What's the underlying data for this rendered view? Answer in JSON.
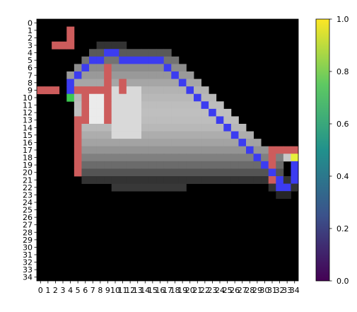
{
  "chart_data": {
    "type": "heatmap",
    "x_ticks": [
      "0",
      "1",
      "2",
      "3",
      "4",
      "5",
      "6",
      "7",
      "8",
      "9",
      "10",
      "11",
      "12",
      "13",
      "14",
      "15",
      "16",
      "17",
      "18",
      "19",
      "20",
      "21",
      "22",
      "23",
      "24",
      "25",
      "26",
      "27",
      "28",
      "29",
      "30",
      "31",
      "32",
      "33",
      "34"
    ],
    "y_ticks": [
      "0",
      "1",
      "2",
      "3",
      "4",
      "5",
      "6",
      "7",
      "8",
      "9",
      "10",
      "11",
      "12",
      "13",
      "14",
      "15",
      "16",
      "17",
      "18",
      "19",
      "20",
      "21",
      "22",
      "23",
      "24",
      "25",
      "26",
      "27",
      "28",
      "29",
      "30",
      "31",
      "32",
      "33",
      "34"
    ],
    "colorbar": {
      "colormap": "viridis",
      "range": [
        0.0,
        1.0
      ],
      "tick_labels": [
        "0.0",
        "0.2",
        "0.4",
        "0.6",
        "0.8",
        "1.0"
      ]
    },
    "colors": {
      "background": "#000000",
      "red_overlay": "#cd5c5c",
      "blue_overlay": "#3c3cf0",
      "green_marker": "#3cc850",
      "yellow_marker": "#e6f03c"
    },
    "grey_regions": [
      {
        "rows": [
          3,
          3
        ],
        "cols": [
          8,
          11
        ],
        "value": 0.2
      },
      {
        "rows": [
          4,
          4
        ],
        "cols": [
          7,
          17
        ],
        "value": 0.35
      },
      {
        "rows": [
          5,
          5
        ],
        "cols": [
          6,
          18
        ],
        "value": 0.45
      },
      {
        "rows": [
          6,
          6
        ],
        "cols": [
          5,
          19
        ],
        "value": 0.55
      },
      {
        "rows": [
          7,
          7
        ],
        "cols": [
          4,
          20
        ],
        "value": 0.6
      },
      {
        "rows": [
          8,
          8
        ],
        "cols": [
          4,
          21
        ],
        "value": 0.65
      },
      {
        "rows": [
          9,
          9
        ],
        "cols": [
          4,
          22
        ],
        "value": 0.7
      },
      {
        "rows": [
          10,
          10
        ],
        "cols": [
          4,
          23
        ],
        "value": 0.72
      },
      {
        "rows": [
          11,
          11
        ],
        "cols": [
          5,
          24
        ],
        "value": 0.74
      },
      {
        "rows": [
          12,
          12
        ],
        "cols": [
          5,
          25
        ],
        "value": 0.75
      },
      {
        "rows": [
          13,
          13
        ],
        "cols": [
          5,
          26
        ],
        "value": 0.74
      },
      {
        "rows": [
          14,
          14
        ],
        "cols": [
          5,
          27
        ],
        "value": 0.72
      },
      {
        "rows": [
          15,
          15
        ],
        "cols": [
          5,
          28
        ],
        "value": 0.68
      },
      {
        "rows": [
          16,
          16
        ],
        "cols": [
          5,
          29
        ],
        "value": 0.64
      },
      {
        "rows": [
          17,
          17
        ],
        "cols": [
          5,
          30
        ],
        "value": 0.58
      },
      {
        "rows": [
          18,
          18
        ],
        "cols": [
          5,
          32
        ],
        "value": 0.5
      },
      {
        "rows": [
          19,
          19
        ],
        "cols": [
          5,
          32
        ],
        "value": 0.42
      },
      {
        "rows": [
          20,
          20
        ],
        "cols": [
          5,
          32
        ],
        "value": 0.33
      },
      {
        "rows": [
          21,
          21
        ],
        "cols": [
          6,
          33
        ],
        "value": 0.2
      },
      {
        "rows": [
          22,
          22
        ],
        "cols": [
          10,
          19
        ],
        "value": 0.22
      },
      {
        "rows": [
          22,
          22
        ],
        "cols": [
          31,
          34
        ],
        "value": 0.2
      },
      {
        "rows": [
          23,
          23
        ],
        "cols": [
          32,
          33
        ],
        "value": 0.15
      },
      {
        "rows": [
          9,
          13
        ],
        "cols": [
          6,
          9
        ],
        "value": 0.92
      },
      {
        "rows": [
          9,
          15
        ],
        "cols": [
          10,
          13
        ],
        "value": 0.85
      }
    ],
    "red_cells": [
      [
        1,
        4
      ],
      [
        2,
        4
      ],
      [
        3,
        2
      ],
      [
        3,
        3
      ],
      [
        3,
        4
      ],
      [
        6,
        9
      ],
      [
        7,
        9
      ],
      [
        8,
        9
      ],
      [
        8,
        11
      ],
      [
        9,
        11
      ],
      [
        9,
        0
      ],
      [
        9,
        1
      ],
      [
        9,
        2
      ],
      [
        9,
        5
      ],
      [
        9,
        6
      ],
      [
        9,
        7
      ],
      [
        9,
        8
      ],
      [
        9,
        9
      ],
      [
        10,
        6
      ],
      [
        10,
        9
      ],
      [
        11,
        6
      ],
      [
        11,
        9
      ],
      [
        12,
        6
      ],
      [
        12,
        9
      ],
      [
        13,
        5
      ],
      [
        13,
        6
      ],
      [
        13,
        9
      ],
      [
        14,
        5
      ],
      [
        15,
        5
      ],
      [
        16,
        5
      ],
      [
        17,
        5
      ],
      [
        18,
        5
      ],
      [
        19,
        5
      ],
      [
        20,
        5
      ],
      [
        17,
        31
      ],
      [
        17,
        32
      ],
      [
        17,
        33
      ],
      [
        17,
        34
      ],
      [
        18,
        31
      ],
      [
        19,
        31
      ],
      [
        20,
        31
      ],
      [
        21,
        31
      ],
      [
        21,
        32
      ]
    ],
    "blue_cells": [
      [
        4,
        9
      ],
      [
        4,
        10
      ],
      [
        5,
        7
      ],
      [
        5,
        8
      ],
      [
        5,
        11
      ],
      [
        5,
        12
      ],
      [
        5,
        13
      ],
      [
        5,
        14
      ],
      [
        5,
        15
      ],
      [
        5,
        16
      ],
      [
        6,
        6
      ],
      [
        6,
        17
      ],
      [
        7,
        5
      ],
      [
        7,
        18
      ],
      [
        8,
        4
      ],
      [
        8,
        19
      ],
      [
        9,
        4
      ],
      [
        9,
        20
      ],
      [
        10,
        21
      ],
      [
        11,
        22
      ],
      [
        12,
        23
      ],
      [
        13,
        24
      ],
      [
        14,
        25
      ],
      [
        15,
        26
      ],
      [
        16,
        27
      ],
      [
        17,
        28
      ],
      [
        18,
        29
      ],
      [
        19,
        30
      ],
      [
        20,
        31
      ],
      [
        21,
        32
      ],
      [
        22,
        32
      ],
      [
        22,
        33
      ],
      [
        18,
        34
      ],
      [
        19,
        34
      ],
      [
        20,
        34
      ],
      [
        21,
        34
      ]
    ],
    "green_cells": [
      [
        10,
        4
      ]
    ],
    "yellow_cells": [
      [
        18,
        34
      ]
    ],
    "light_cells": [
      [
        18,
        33
      ]
    ]
  }
}
